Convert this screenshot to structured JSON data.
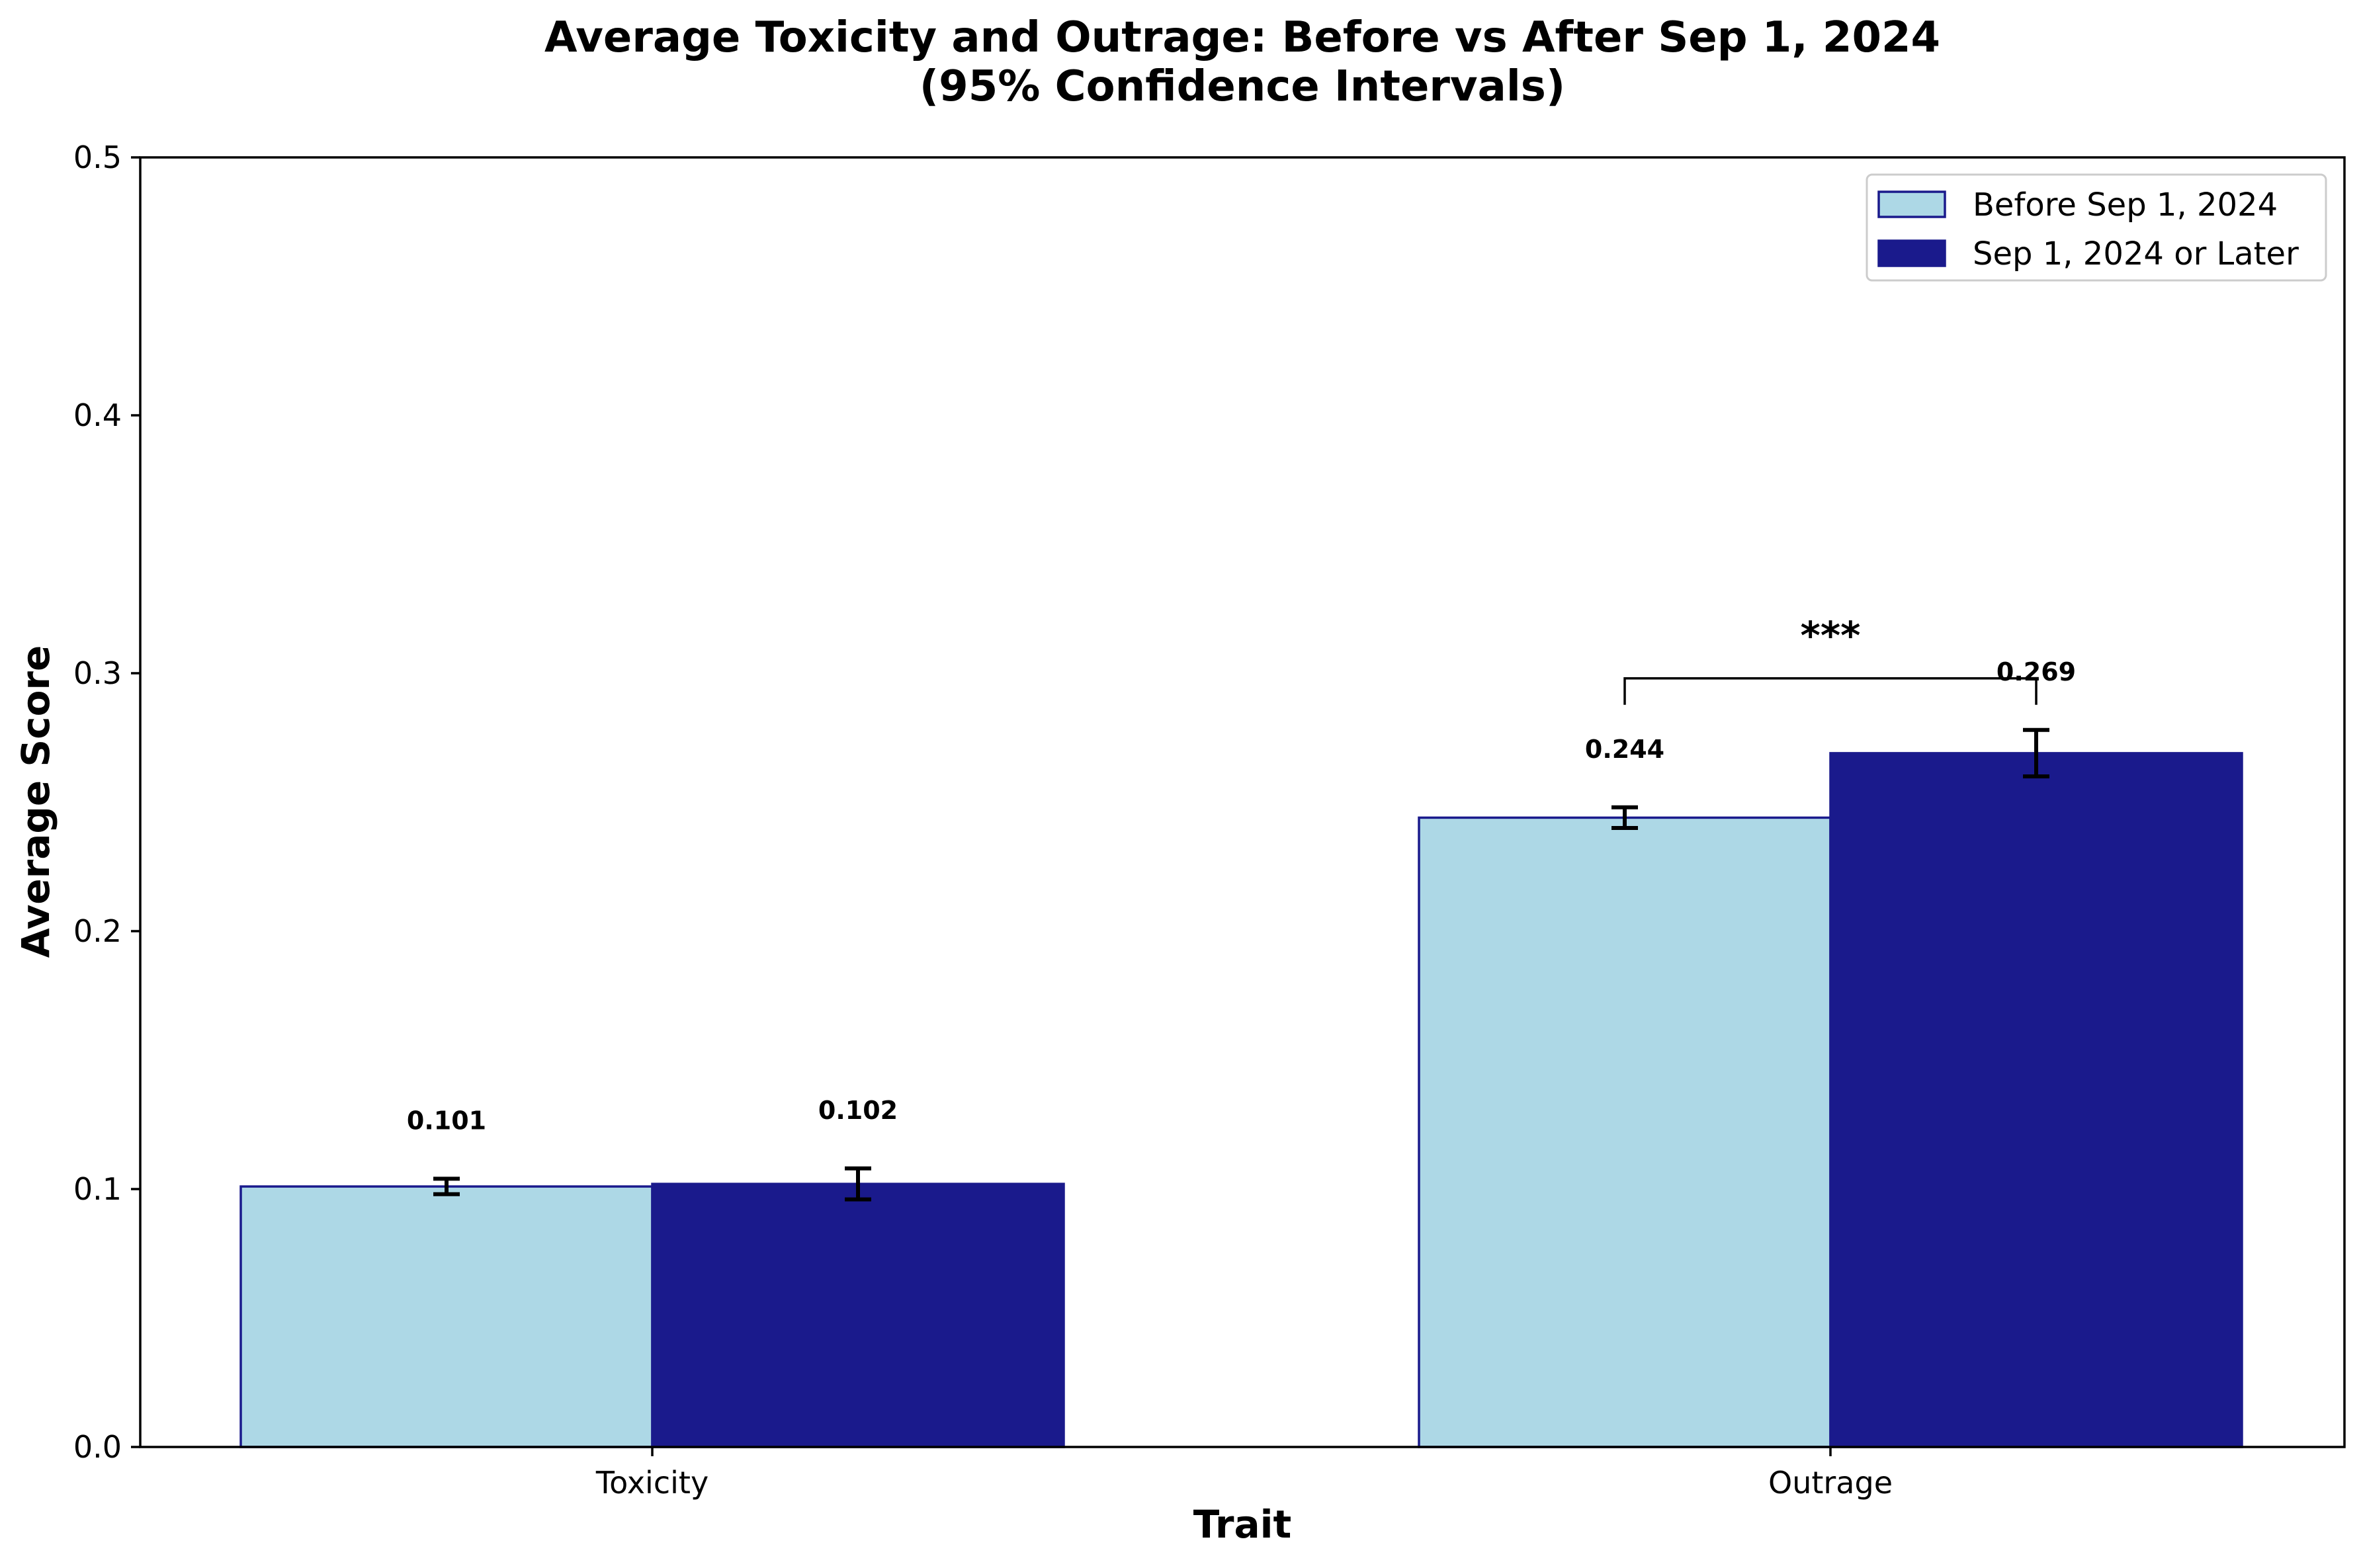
{
  "chart_data": {
    "type": "bar",
    "title": "Average Toxicity and Outrage: Before vs After Sep 1, 2024",
    "subtitle": "(95% Confidence Intervals)",
    "xlabel": "Trait",
    "ylabel": "Average Score",
    "categories": [
      "Toxicity",
      "Outrage"
    ],
    "ylim": [
      0,
      0.5
    ],
    "yticks": [
      0.0,
      0.1,
      0.2,
      0.3,
      0.4,
      0.5
    ],
    "ytick_labels": [
      "0.0",
      "0.1",
      "0.2",
      "0.3",
      "0.4",
      "0.5"
    ],
    "grid": false,
    "legend_position": "top-right",
    "series": [
      {
        "name": "Before Sep 1, 2024",
        "color": "#add8e6",
        "edge_color": "#1a1a8c",
        "values": [
          0.101,
          0.244
        ],
        "value_labels": [
          "0.101",
          "0.244"
        ],
        "ci": [
          [
            0.098,
            0.104
          ],
          [
            0.24,
            0.248
          ]
        ]
      },
      {
        "name": "Sep 1, 2024 or Later",
        "color": "#1a1a8c",
        "edge_color": "#1a1a8c",
        "values": [
          0.102,
          0.269
        ],
        "value_labels": [
          "0.102",
          "0.269"
        ],
        "ci": [
          [
            0.096,
            0.108
          ],
          [
            0.26,
            0.278
          ]
        ]
      }
    ],
    "annotations": [
      {
        "type": "significance",
        "category": "Outrage",
        "text": "***",
        "bracket_y": 0.298
      }
    ]
  }
}
